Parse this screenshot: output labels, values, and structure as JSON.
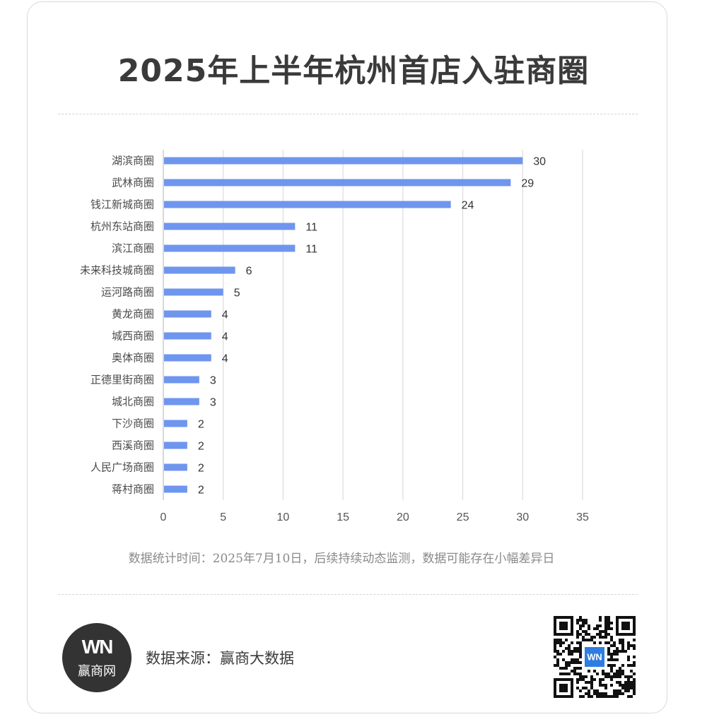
{
  "title": "2025年上半年杭州首店入驻商圈",
  "note": "数据统计时间：2025年7月10日，后续持续动态监测，数据可能存在小幅差异日",
  "source": "数据来源：赢商大数据",
  "logo": {
    "mark": "WN",
    "text": "赢商网"
  },
  "qr": {
    "icon": "qr-code-icon",
    "center_mark": "WN"
  },
  "colors": {
    "bar": "#6f96ee",
    "grid": "#dcdcdc",
    "title": "#3a3a3a"
  },
  "chart_data": {
    "type": "bar",
    "orientation": "horizontal",
    "categories": [
      "湖滨商圈",
      "武林商圈",
      "钱江新城商圈",
      "杭州东站商圈",
      "滨江商圈",
      "未来科技城商圈",
      "运河路商圈",
      "黄龙商圈",
      "城西商圈",
      "奥体商圈",
      "正德里街商圈",
      "城北商圈",
      "下沙商圈",
      "西溪商圈",
      "人民广场商圈",
      "蒋村商圈"
    ],
    "values": [
      30,
      29,
      24,
      11,
      11,
      6,
      5,
      4,
      4,
      4,
      3,
      3,
      2,
      2,
      2,
      2
    ],
    "xlim": [
      0,
      35
    ],
    "xticks": [
      0,
      5,
      10,
      15,
      20,
      25,
      30,
      35
    ],
    "grid": true,
    "data_labels": true
  }
}
